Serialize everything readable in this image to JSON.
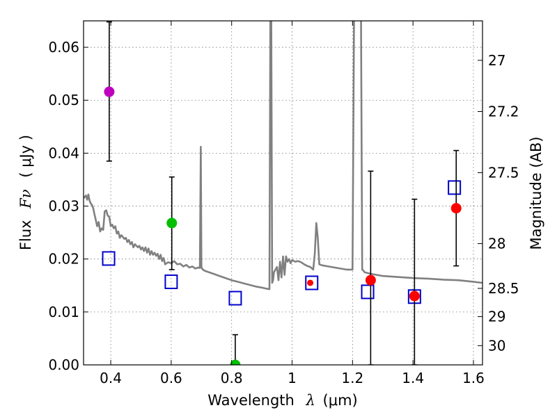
{
  "chart_data": {
    "type": "scatter",
    "xlabel_main": "Wavelength",
    "xlabel_symbol": "λ",
    "xlabel_unit": "(μm)",
    "ylabel_main": "Flux",
    "ylabel_symbol": "Fν",
    "ylabel_unit": "( μJy )",
    "y2label": "Magnitude (AB)",
    "xlim": [
      0.31,
      1.63
    ],
    "ylim": [
      0.0,
      0.065
    ],
    "grid": true,
    "x_ticks": [
      0.4,
      0.6,
      0.8,
      1.0,
      1.2,
      1.4,
      1.6
    ],
    "x_tick_labels": [
      "0.4",
      "0.6",
      "0.8",
      "1",
      "1.2",
      "1.4",
      "1.6"
    ],
    "y_ticks": [
      0.0,
      0.01,
      0.02,
      0.03,
      0.04,
      0.05,
      0.06
    ],
    "y_tick_labels": [
      "0.00",
      "0.01",
      "0.02",
      "0.03",
      "0.04",
      "0.05",
      "0.06"
    ],
    "mag_ticks": [
      27,
      27.2,
      27.5,
      28,
      28.5,
      29,
      30
    ],
    "mag_tick_labels": [
      "27",
      "27.2",
      "27.5",
      "28",
      "28.5",
      "29",
      "30"
    ],
    "observed": [
      {
        "x": 0.395,
        "y": 0.0516,
        "yerr_low": 0.0385,
        "yerr_high": 0.0648,
        "color": "#bf00bf"
      },
      {
        "x": 0.602,
        "y": 0.0268,
        "yerr_low": 0.018,
        "yerr_high": 0.0355,
        "color": "#00bf00"
      },
      {
        "x": 0.812,
        "y": 0.0,
        "yerr_low": 0.0,
        "yerr_high": 0.0057,
        "color": "#00bf00"
      },
      {
        "x": 1.06,
        "y": 0.0155,
        "yerr_low": null,
        "yerr_high": null,
        "color": "#ff0000"
      },
      {
        "x": 1.26,
        "y": 0.016,
        "yerr_low": 0.0,
        "yerr_high": 0.0366,
        "color": "#ff0000"
      },
      {
        "x": 1.405,
        "y": 0.013,
        "yerr_low": 0.0,
        "yerr_high": 0.0313,
        "color": "#ff0000"
      },
      {
        "x": 1.543,
        "y": 0.0296,
        "yerr_low": 0.0187,
        "yerr_high": 0.0405,
        "color": "#ff0000"
      }
    ],
    "model_photometry": {
      "x": [
        0.393,
        0.6,
        0.812,
        1.065,
        1.25,
        1.405,
        1.537
      ],
      "y": [
        0.0201,
        0.0157,
        0.0126,
        0.0155,
        0.0138,
        0.0129,
        0.0335
      ],
      "color": "#0000cc"
    },
    "spectrum": {
      "color": "#808080",
      "x": [
        0.31,
        0.318,
        0.322,
        0.326,
        0.33,
        0.334,
        0.338,
        0.342,
        0.346,
        0.35,
        0.355,
        0.36,
        0.365,
        0.37,
        0.375,
        0.38,
        0.385,
        0.39,
        0.395,
        0.4,
        0.405,
        0.41,
        0.415,
        0.42,
        0.425,
        0.43,
        0.435,
        0.44,
        0.445,
        0.45,
        0.455,
        0.46,
        0.465,
        0.47,
        0.475,
        0.48,
        0.485,
        0.49,
        0.495,
        0.5,
        0.505,
        0.51,
        0.515,
        0.52,
        0.525,
        0.53,
        0.535,
        0.54,
        0.545,
        0.55,
        0.555,
        0.56,
        0.565,
        0.57,
        0.575,
        0.58,
        0.59,
        0.6,
        0.61,
        0.62,
        0.63,
        0.64,
        0.65,
        0.66,
        0.67,
        0.68,
        0.69,
        0.695,
        0.698,
        0.7,
        0.702,
        0.705,
        0.71,
        0.72,
        0.74,
        0.76,
        0.78,
        0.8,
        0.82,
        0.84,
        0.86,
        0.88,
        0.9,
        0.915,
        0.925,
        0.928,
        0.931,
        0.934,
        0.937,
        0.94,
        0.95,
        0.955,
        0.96,
        0.965,
        0.97,
        0.975,
        0.98,
        0.985,
        0.99,
        0.995,
        1.0,
        1.01,
        1.02,
        1.03,
        1.04,
        1.05,
        1.06,
        1.07,
        1.075,
        1.08,
        1.085,
        1.09,
        1.1,
        1.12,
        1.14,
        1.16,
        1.18,
        1.2,
        1.205,
        1.208,
        1.212,
        1.22,
        1.228,
        1.232,
        1.236,
        1.24,
        1.26,
        1.3,
        1.35,
        1.4,
        1.45,
        1.5,
        1.55,
        1.6,
        1.63
      ],
      "y": [
        0.0315,
        0.032,
        0.0312,
        0.0322,
        0.031,
        0.0305,
        0.0302,
        0.0296,
        0.0285,
        0.0275,
        0.0262,
        0.027,
        0.0252,
        0.0258,
        0.0255,
        0.029,
        0.0292,
        0.0282,
        0.028,
        0.0262,
        0.0265,
        0.0258,
        0.0262,
        0.0248,
        0.0252,
        0.024,
        0.0245,
        0.0242,
        0.0238,
        0.024,
        0.0232,
        0.0236,
        0.0228,
        0.0232,
        0.0222,
        0.0228,
        0.0225,
        0.0222,
        0.0225,
        0.0218,
        0.0222,
        0.0215,
        0.0222,
        0.0212,
        0.022,
        0.0208,
        0.0215,
        0.0208,
        0.0212,
        0.0206,
        0.021,
        0.02,
        0.0208,
        0.0196,
        0.0202,
        0.019,
        0.0194,
        0.0192,
        0.0196,
        0.019,
        0.0191,
        0.0186,
        0.0189,
        0.0184,
        0.0186,
        0.0182,
        0.0184,
        0.0183,
        0.0412,
        0.0185,
        0.0182,
        0.018,
        0.0178,
        0.0176,
        0.0172,
        0.0168,
        0.0164,
        0.016,
        0.0157,
        0.0154,
        0.0151,
        0.0148,
        0.0146,
        0.0144,
        0.0143,
        0.066,
        0.066,
        0.0155,
        0.016,
        0.0175,
        0.0185,
        0.016,
        0.0195,
        0.0165,
        0.0205,
        0.017,
        0.0205,
        0.0195,
        0.02,
        0.0192,
        0.0198,
        0.0195,
        0.0196,
        0.0194,
        0.019,
        0.0187,
        0.0185,
        0.018,
        0.021,
        0.0268,
        0.024,
        0.019,
        0.0188,
        0.0186,
        0.0184,
        0.0182,
        0.018,
        0.018,
        0.066,
        0.066,
        0.066,
        0.066,
        0.066,
        0.018,
        0.0178,
        0.0175,
        0.0172,
        0.0168,
        0.0166,
        0.0164,
        0.0163,
        0.0161,
        0.016,
        0.0157,
        0.0155
      ]
    }
  }
}
